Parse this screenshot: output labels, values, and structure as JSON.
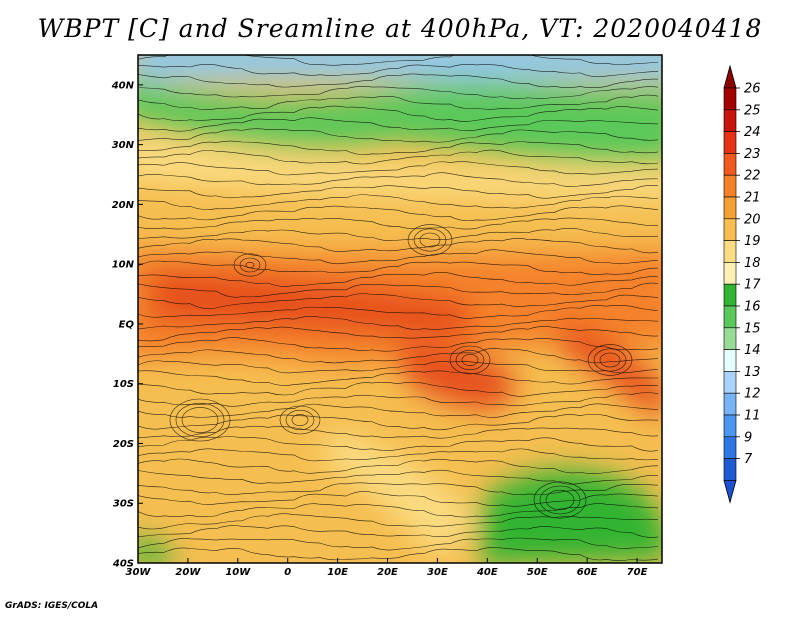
{
  "title": "WBPT [C] and Sreamline at 400hPa, VT: 2020040418",
  "credit": "GrADS: IGES/COLA",
  "map": {
    "lon_labels": [
      "30W",
      "20W",
      "10W",
      "0",
      "10E",
      "20E",
      "30E",
      "40E",
      "50E",
      "60E",
      "70E"
    ],
    "lat_labels": [
      "40N",
      "30N",
      "20N",
      "10N",
      "EQ",
      "10S",
      "20S",
      "30S",
      "40S"
    ],
    "lon_range": [
      -30,
      75
    ],
    "lat_range": [
      -40,
      45
    ]
  },
  "colorbar": {
    "labels": [
      "26",
      "25",
      "24",
      "23",
      "22",
      "21",
      "20",
      "19",
      "18",
      "17",
      "16",
      "15",
      "14",
      "13",
      "12",
      "11",
      "9",
      "7"
    ],
    "colors": [
      "#a50000",
      "#c8140a",
      "#e63214",
      "#f05a1e",
      "#f58228",
      "#f5a032",
      "#f5be50",
      "#fadc82",
      "#fcf0b4",
      "#32b432",
      "#5ac85a",
      "#96dc96",
      "#e6ffff",
      "#aad2fa",
      "#78b4f5",
      "#4b96f0",
      "#2d78e6",
      "#1e5ad2"
    ],
    "top_arrow_color": "#8c0000",
    "bottom_arrow_color": "#1e50d2"
  }
}
